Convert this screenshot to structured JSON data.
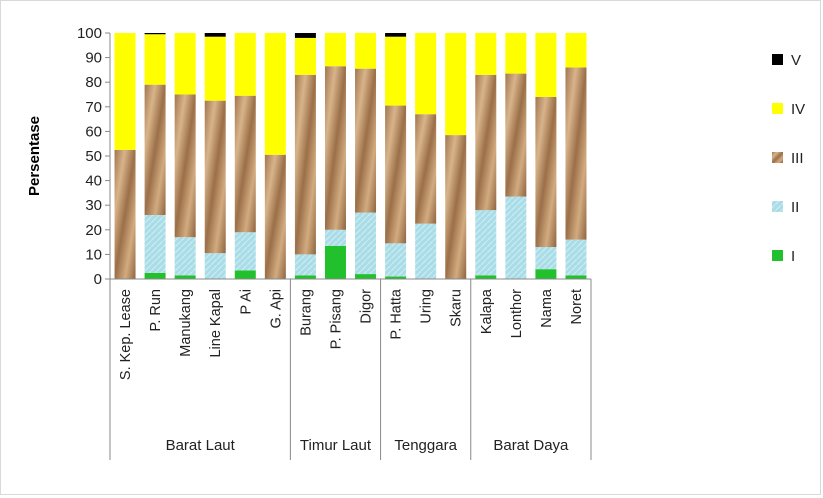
{
  "chart_data": {
    "type": "bar",
    "stacked": true,
    "ylabel": "Persentase",
    "ylim": [
      0,
      100
    ],
    "ytick_step": 10,
    "grid": false,
    "legend_position": "right",
    "categories": [
      "S. Kep. Lease",
      "P. Run",
      "Manukang",
      "Line Kapal",
      "P Ai",
      "G. Api",
      "Burang",
      "P. Pisang",
      "Digor",
      "P. Hatta",
      "Uring",
      "Skaru",
      "Kalapa",
      "Lonthor",
      "Nama",
      "Noret"
    ],
    "groups": [
      {
        "label": "Barat Laut",
        "count": 6
      },
      {
        "label": "Timur Laut",
        "count": 3
      },
      {
        "label": "Tenggara",
        "count": 3
      },
      {
        "label": "Barat Daya",
        "count": 4
      }
    ],
    "series": [
      {
        "name": "I",
        "color": "#22c02c",
        "values": [
          0,
          2.5,
          1.5,
          0,
          3.5,
          0,
          1.5,
          13.5,
          2,
          1,
          0,
          0,
          1.5,
          0,
          4,
          1.5
        ]
      },
      {
        "name": "II",
        "color": "#a9dce6",
        "values": [
          0,
          23.5,
          15.5,
          10.5,
          15.5,
          0,
          8.5,
          6.5,
          25,
          13.5,
          22.5,
          0,
          26.5,
          33.5,
          9,
          14.5
        ]
      },
      {
        "name": "III",
        "color": "#c39a6b",
        "values": [
          52.5,
          53,
          58,
          62,
          55.5,
          50.5,
          73,
          66.5,
          58.5,
          56,
          44.5,
          58.5,
          55,
          50,
          61,
          70
        ]
      },
      {
        "name": "IV",
        "color": "#ffff00",
        "values": [
          47.5,
          20.5,
          25,
          26,
          25.5,
          49.5,
          15,
          13.5,
          14.5,
          28,
          33,
          41.5,
          17,
          16.5,
          26,
          14
        ]
      },
      {
        "name": "V",
        "color": "#000000",
        "values": [
          0,
          0.5,
          0,
          1.5,
          0,
          0,
          2,
          0,
          0,
          1.5,
          0,
          0,
          0,
          0,
          0,
          0
        ]
      }
    ],
    "yticks": [
      "0",
      "10",
      "20",
      "30",
      "40",
      "50",
      "60",
      "70",
      "80",
      "90",
      "100"
    ],
    "legend_order": [
      "V",
      "IV",
      "III",
      "II",
      "I"
    ]
  }
}
